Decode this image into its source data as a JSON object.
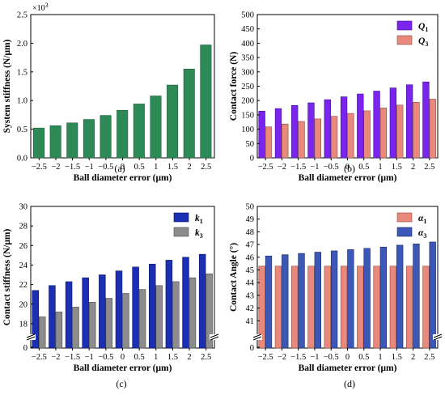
{
  "chart_data": [
    {
      "id": "a",
      "type": "bar",
      "caption": "(a)",
      "xlabel": "Ball diameter error (μm)",
      "ylabel": "System stiffness (N/μm)",
      "exponent_label": "×10",
      "exponent_power": "3",
      "categories": [
        "−2.5",
        "−2",
        "−1.5",
        "−1",
        "−0.5",
        "0",
        "0.5",
        "1",
        "1.5",
        "2",
        "2.5"
      ],
      "ylim": [
        0,
        2.5
      ],
      "yticks": [
        "0.0",
        "0.5",
        "1.0",
        "1.5",
        "2.0",
        "2.5"
      ],
      "grid": false,
      "series": [
        {
          "values": [
            0.52,
            0.56,
            0.61,
            0.67,
            0.74,
            0.83,
            0.94,
            1.08,
            1.27,
            1.55,
            1.97
          ],
          "color": "#2d8a57",
          "edge": "#1f5b3a"
        }
      ]
    },
    {
      "id": "b",
      "type": "bar",
      "caption": "(b)",
      "xlabel": "Ball diameter error (μm)",
      "ylabel": "Contact force (N)",
      "categories": [
        "−2.5",
        "−2",
        "−1.5",
        "−1",
        "−0.5",
        "0",
        "0.5",
        "1",
        "1.5",
        "2",
        "2.5"
      ],
      "ylim": [
        0,
        500
      ],
      "yticks": [
        "0",
        "50",
        "100",
        "150",
        "200",
        "250",
        "300",
        "350",
        "400",
        "450",
        "500"
      ],
      "grid": false,
      "legend": "top-right",
      "series": [
        {
          "name": "Q",
          "subscript": "1",
          "values": [
            163,
            172,
            183,
            192,
            203,
            213,
            223,
            233,
            244,
            255,
            265
          ],
          "color": "#7b24ee",
          "edge": "#3c1190"
        },
        {
          "name": "Q",
          "subscript": "3",
          "values": [
            108,
            118,
            127,
            136,
            145,
            155,
            164,
            174,
            184,
            194,
            205
          ],
          "color": "#e8897c",
          "edge": "#8c4a40"
        }
      ]
    },
    {
      "id": "c",
      "type": "bar",
      "caption": "(c)",
      "xlabel": "Ball diameter error (μm)",
      "ylabel": "Contact stiffness (N/μm)",
      "categories": [
        "−2.5",
        "−2",
        "−1.5",
        "−1",
        "−0.5",
        "0",
        "0.5",
        "1",
        "1.5",
        "2",
        "2.5"
      ],
      "ylim": [
        17,
        30
      ],
      "axis_break": true,
      "ylow_tick": "0",
      "yticks": [
        "18",
        "20",
        "22",
        "24",
        "26",
        "28",
        "30"
      ],
      "grid": false,
      "legend": "top-right",
      "series": [
        {
          "name": "k",
          "subscript": "1",
          "values": [
            21.4,
            21.9,
            22.3,
            22.7,
            23.0,
            23.4,
            23.8,
            24.1,
            24.5,
            24.8,
            25.1
          ],
          "color": "#1b2fb4",
          "edge": "#0c1560"
        },
        {
          "name": "k",
          "subscript": "3",
          "values": [
            18.7,
            19.2,
            19.7,
            20.2,
            20.6,
            21.1,
            21.5,
            21.9,
            22.3,
            22.7,
            23.1
          ],
          "color": "#8c8c8c",
          "edge": "#4a4a4a"
        }
      ]
    },
    {
      "id": "d",
      "type": "bar",
      "caption": "(d)",
      "xlabel": "Ball diameter error (μm)",
      "ylabel": "Contact Angle (°)",
      "categories": [
        "−2.5",
        "−2",
        "−1.5",
        "−1",
        "−0.5",
        "0",
        "0.5",
        "1",
        "1.5",
        "2",
        "2.5"
      ],
      "ylim": [
        40,
        50
      ],
      "axis_break": true,
      "ylow_tick": "0",
      "yticks": [
        "41",
        "42",
        "43",
        "44",
        "45",
        "46",
        "47",
        "48",
        "49",
        "50"
      ],
      "grid": false,
      "legend": "top-right",
      "series": [
        {
          "name": "α",
          "subscript": "1",
          "values": [
            45.3,
            45.3,
            45.3,
            45.3,
            45.3,
            45.3,
            45.3,
            45.3,
            45.3,
            45.3,
            45.3
          ],
          "color": "#e8897c",
          "edge": "#8c4a40"
        },
        {
          "name": "α",
          "subscript": "3",
          "values": [
            46.1,
            46.2,
            46.3,
            46.4,
            46.5,
            46.6,
            46.7,
            46.8,
            46.95,
            47.05,
            47.2
          ],
          "color": "#3b57b8",
          "edge": "#1b2a60"
        }
      ]
    }
  ]
}
